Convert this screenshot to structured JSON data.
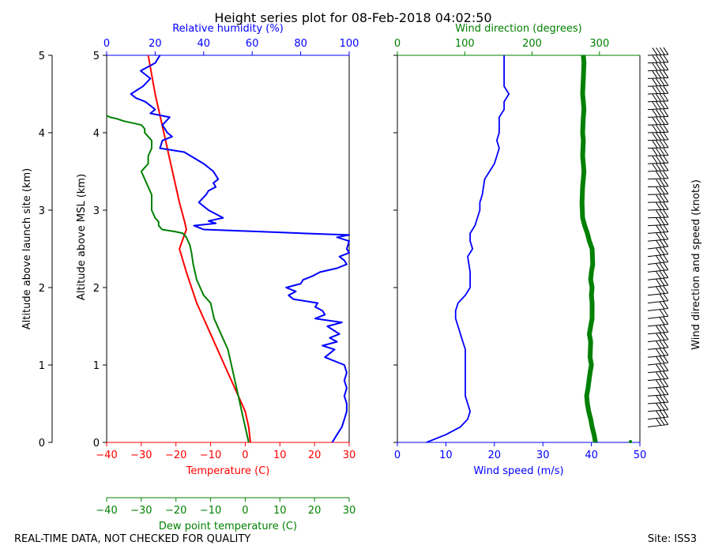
{
  "title": "Height series plot for 08-Feb-2018 04:02:50",
  "footer": {
    "quality_note": "REAL-TIME DATA, NOT CHECKED FOR QUALITY",
    "site": "Site: ISS3"
  },
  "colors": {
    "temperature": "#ff0000",
    "dewpoint": "#008000",
    "humidity": "#0000ff",
    "wind_speed": "#0000ff",
    "wind_direction": "#008000",
    "frame": "#000000"
  },
  "chart_data": [
    {
      "type": "line",
      "panel": "thermo",
      "y_axes": [
        {
          "label": "Altitude above launch site (km)",
          "ylim": [
            0,
            5
          ],
          "ticks": [
            0,
            1,
            2,
            3,
            4,
            5
          ]
        },
        {
          "label": "Altitude above MSL (km)",
          "ylim": [
            0,
            5
          ],
          "ticks": [
            0,
            1,
            2,
            3,
            4,
            5
          ]
        }
      ],
      "x_axes": [
        {
          "id": "temperature",
          "label": "Temperature (C)",
          "xlim": [
            -40,
            30
          ],
          "ticks": [
            -40,
            -30,
            -20,
            -10,
            0,
            10,
            20,
            30
          ],
          "position": "bottom"
        },
        {
          "id": "humidity",
          "label": "Relative humidity (%)",
          "xlim": [
            0,
            100
          ],
          "ticks": [
            0,
            20,
            40,
            60,
            80,
            100
          ],
          "position": "top"
        },
        {
          "id": "dewpoint",
          "label": "Dew point temperature (C)",
          "xlim": [
            -40,
            30
          ],
          "ticks": [
            -40,
            -30,
            -20,
            -10,
            0,
            10,
            20,
            30
          ],
          "position": "bottom-offset"
        }
      ],
      "series": [
        {
          "name": "Temperature",
          "axis": "temperature",
          "color": "#ff0000",
          "x": [
            1.5,
            1,
            0,
            -3,
            -6,
            -10,
            -14,
            -17,
            -19,
            -17,
            -17.5,
            -19,
            -20,
            -21,
            -22,
            -23,
            -24,
            -25,
            -26,
            -27,
            -28
          ],
          "y": [
            0,
            0.2,
            0.4,
            0.7,
            1.0,
            1.4,
            1.8,
            2.2,
            2.5,
            2.75,
            2.85,
            3.1,
            3.3,
            3.5,
            3.7,
            3.9,
            4.1,
            4.3,
            4.5,
            4.75,
            5.0
          ]
        },
        {
          "name": "Dew point",
          "axis": "dewpoint",
          "color": "#008000",
          "x": [
            1,
            0,
            -1,
            -2,
            -3,
            -4,
            -5,
            -7,
            -9,
            -10,
            -12,
            -13,
            -14,
            -14.5,
            -15,
            -15.5,
            -16,
            -17,
            -18,
            -20,
            -24,
            -25,
            -25,
            -26,
            -27,
            -27,
            -28,
            -30,
            -28,
            -28,
            -27,
            -27,
            -28,
            -29,
            -29,
            -30,
            -32,
            -35,
            -37,
            -39,
            -40
          ],
          "y": [
            0,
            0.2,
            0.4,
            0.6,
            0.8,
            1.0,
            1.2,
            1.4,
            1.6,
            1.8,
            1.9,
            2.0,
            2.1,
            2.2,
            2.3,
            2.45,
            2.55,
            2.65,
            2.7,
            2.72,
            2.75,
            2.8,
            2.85,
            2.9,
            3.0,
            3.2,
            3.3,
            3.5,
            3.6,
            3.7,
            3.8,
            3.9,
            3.95,
            4.0,
            4.05,
            4.1,
            4.12,
            4.15,
            4.18,
            4.2,
            4.22
          ]
        },
        {
          "name": "Relative humidity",
          "axis": "humidity",
          "color": "#0000ff",
          "x": [
            93,
            95,
            97,
            98,
            99,
            99,
            98,
            99,
            98,
            99,
            98,
            90,
            94,
            89,
            95,
            92,
            96,
            91,
            97,
            86,
            90,
            89,
            86,
            87,
            77,
            75,
            78,
            74,
            80,
            81,
            85,
            88,
            95,
            99,
            98,
            96,
            100,
            99,
            100,
            95,
            100,
            90,
            65,
            40,
            36,
            45,
            42,
            48,
            42,
            38,
            41,
            42,
            45,
            44,
            46,
            44,
            40,
            32,
            22,
            23,
            27,
            25,
            23,
            26,
            18,
            20,
            18,
            16,
            12,
            10,
            15,
            18,
            14,
            20,
            22
          ],
          "y": [
            0,
            0.1,
            0.2,
            0.3,
            0.4,
            0.5,
            0.6,
            0.7,
            0.8,
            0.9,
            1.0,
            1.1,
            1.2,
            1.25,
            1.3,
            1.35,
            1.4,
            1.5,
            1.55,
            1.6,
            1.65,
            1.7,
            1.75,
            1.8,
            1.85,
            1.9,
            1.95,
            2.0,
            2.05,
            2.1,
            2.15,
            2.2,
            2.25,
            2.3,
            2.35,
            2.4,
            2.45,
            2.5,
            2.6,
            2.65,
            2.68,
            2.69,
            2.72,
            2.75,
            2.8,
            2.83,
            2.86,
            2.9,
            3.0,
            3.1,
            3.2,
            3.25,
            3.3,
            3.35,
            3.4,
            3.5,
            3.6,
            3.75,
            3.8,
            3.9,
            3.95,
            4.0,
            4.1,
            4.2,
            4.25,
            4.3,
            4.35,
            4.4,
            4.45,
            4.5,
            4.6,
            4.7,
            4.8,
            4.9,
            5.0
          ]
        }
      ]
    },
    {
      "type": "line",
      "panel": "wind",
      "ylabel": "Wind direction and speed (knots)",
      "ylim": [
        0,
        5
      ],
      "x_axes": [
        {
          "id": "speed",
          "label": "Wind speed (m/s)",
          "xlim": [
            0,
            50
          ],
          "ticks": [
            0,
            10,
            20,
            30,
            40,
            50
          ],
          "position": "bottom"
        },
        {
          "id": "direction",
          "label": "Wind direction (degrees)",
          "xlim": [
            0,
            360
          ],
          "ticks": [
            0,
            100,
            200,
            300
          ],
          "position": "top"
        }
      ],
      "series": [
        {
          "name": "Wind speed",
          "axis": "speed",
          "color": "#0000ff",
          "x": [
            6,
            10,
            13,
            14.5,
            15,
            14.5,
            14,
            14,
            14,
            14,
            14,
            13.5,
            13,
            12.5,
            12,
            12,
            12.5,
            14,
            15,
            15,
            14.5,
            15.5,
            15,
            15,
            16,
            17,
            17,
            17.5,
            18,
            19,
            20,
            20.5,
            21,
            20.5,
            21,
            21,
            21,
            22,
            22,
            23,
            22,
            22,
            22
          ],
          "y": [
            0,
            0.1,
            0.2,
            0.3,
            0.4,
            0.5,
            0.6,
            0.8,
            1.0,
            1.1,
            1.2,
            1.3,
            1.4,
            1.5,
            1.6,
            1.7,
            1.8,
            1.9,
            2.0,
            2.2,
            2.4,
            2.5,
            2.6,
            2.7,
            2.8,
            3.0,
            3.1,
            3.2,
            3.4,
            3.5,
            3.6,
            3.7,
            3.8,
            3.9,
            4.0,
            4.1,
            4.2,
            4.3,
            4.4,
            4.5,
            4.6,
            4.8,
            5.0
          ]
        },
        {
          "name": "Wind direction",
          "axis": "direction",
          "color": "#008000",
          "x": [
            294,
            292,
            289,
            287,
            284,
            282,
            281,
            283,
            286,
            288,
            286,
            287,
            285,
            287,
            289,
            289,
            288,
            289,
            287,
            288,
            290,
            289,
            285,
            282,
            278,
            275,
            274,
            275,
            277,
            276,
            275,
            276,
            275,
            276,
            277,
            276,
            275,
            276,
            277,
            276
          ],
          "y": [
            0,
            0.1,
            0.2,
            0.3,
            0.4,
            0.5,
            0.6,
            0.7,
            0.9,
            1.0,
            1.1,
            1.3,
            1.4,
            1.5,
            1.6,
            1.8,
            1.9,
            2.0,
            2.1,
            2.2,
            2.3,
            2.5,
            2.6,
            2.7,
            2.8,
            2.9,
            3.1,
            3.3,
            3.5,
            3.6,
            3.7,
            3.9,
            4.0,
            4.2,
            4.3,
            4.4,
            4.5,
            4.7,
            4.9,
            5.0
          ]
        }
      ]
    }
  ]
}
